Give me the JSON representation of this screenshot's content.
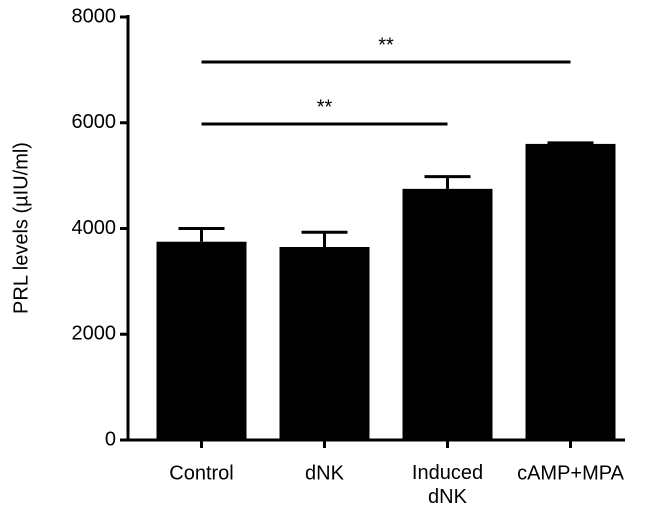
{
  "chart_data": {
    "type": "bar",
    "y_label": "PRL levels (µIU/ml)",
    "categories": [
      "Control",
      "dNK",
      "Induced dNK",
      "cAMP+MPA"
    ],
    "values": [
      3750,
      3650,
      4750,
      5600
    ],
    "errors": [
      250,
      280,
      230,
      20
    ],
    "color": "#000000",
    "ylim": [
      0,
      8000
    ],
    "yticks": [
      0,
      2000,
      4000,
      6000,
      8000
    ],
    "grid": false,
    "annotations": [
      {
        "from": "Control",
        "to": "Induced dNK",
        "label": "**"
      },
      {
        "from": "Control",
        "to": "cAMP+MPA",
        "label": "**"
      }
    ]
  }
}
